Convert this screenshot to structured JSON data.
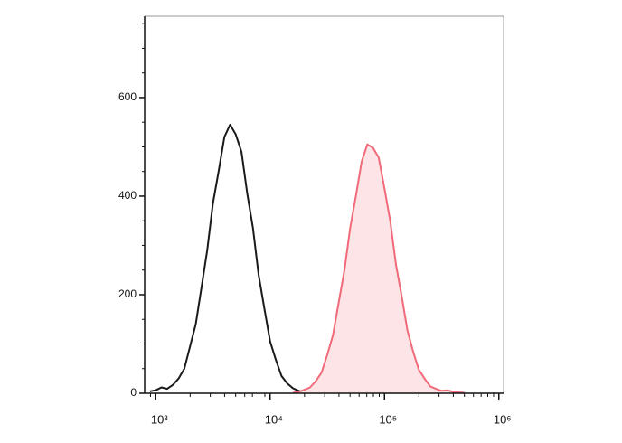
{
  "chart_data": {
    "type": "histogram-overlay",
    "xscale": "log",
    "xlim": [
      800,
      1100000
    ],
    "xticks": [
      {
        "value": 1000,
        "label": "10³"
      },
      {
        "value": 10000,
        "label": "10⁴"
      },
      {
        "value": 100000,
        "label": "10⁵"
      },
      {
        "value": 1000000,
        "label": "10⁶"
      }
    ],
    "xticks_minor": [
      900,
      2000,
      3000,
      4000,
      5000,
      6000,
      7000,
      8000,
      9000,
      20000,
      30000,
      40000,
      50000,
      60000,
      70000,
      80000,
      90000,
      200000,
      300000,
      400000,
      500000,
      600000,
      700000,
      800000,
      900000
    ],
    "ylim": [
      0,
      765
    ],
    "yticks": [
      0,
      200,
      400,
      600
    ],
    "yticks_minor": [
      50,
      100,
      150,
      250,
      300,
      350,
      450,
      500,
      550,
      650,
      700,
      750
    ],
    "series": [
      {
        "color": "#1a1a1a",
        "filled": false,
        "x": [
          891,
          1000,
          1122,
          1259,
          1413,
          1585,
          1778,
          1995,
          2239,
          2512,
          2818,
          3162,
          3548,
          3981,
          4467,
          5012,
          5623,
          6310,
          7079,
          7943,
          8913,
          10000,
          11220,
          12589,
          14125,
          15849,
          17783,
          19953
        ],
        "values": [
          4,
          6,
          12,
          9,
          17,
          30,
          50,
          95,
          140,
          215,
          290,
          385,
          450,
          520,
          545,
          525,
          490,
          405,
          335,
          240,
          172,
          105,
          68,
          35,
          20,
          10,
          5,
          2
        ]
      },
      {
        "color": "#f06a7a",
        "fill": "#fde4e6",
        "filled": true,
        "x": [
          15849,
          17783,
          19953,
          22387,
          25119,
          28184,
          31623,
          35481,
          39811,
          44668,
          50119,
          56234,
          63096,
          70795,
          79433,
          89125,
          100000,
          112202,
          125893,
          141254,
          158489,
          177828,
          199526,
          223872,
          251189,
          281838,
          316228,
          354813,
          398107,
          446684,
          501187
        ],
        "values": [
          1,
          3,
          7,
          12,
          25,
          42,
          78,
          118,
          185,
          250,
          335,
          400,
          470,
          505,
          498,
          478,
          415,
          350,
          262,
          198,
          128,
          85,
          48,
          30,
          14,
          9,
          5,
          6,
          3,
          2,
          1
        ]
      }
    ]
  }
}
